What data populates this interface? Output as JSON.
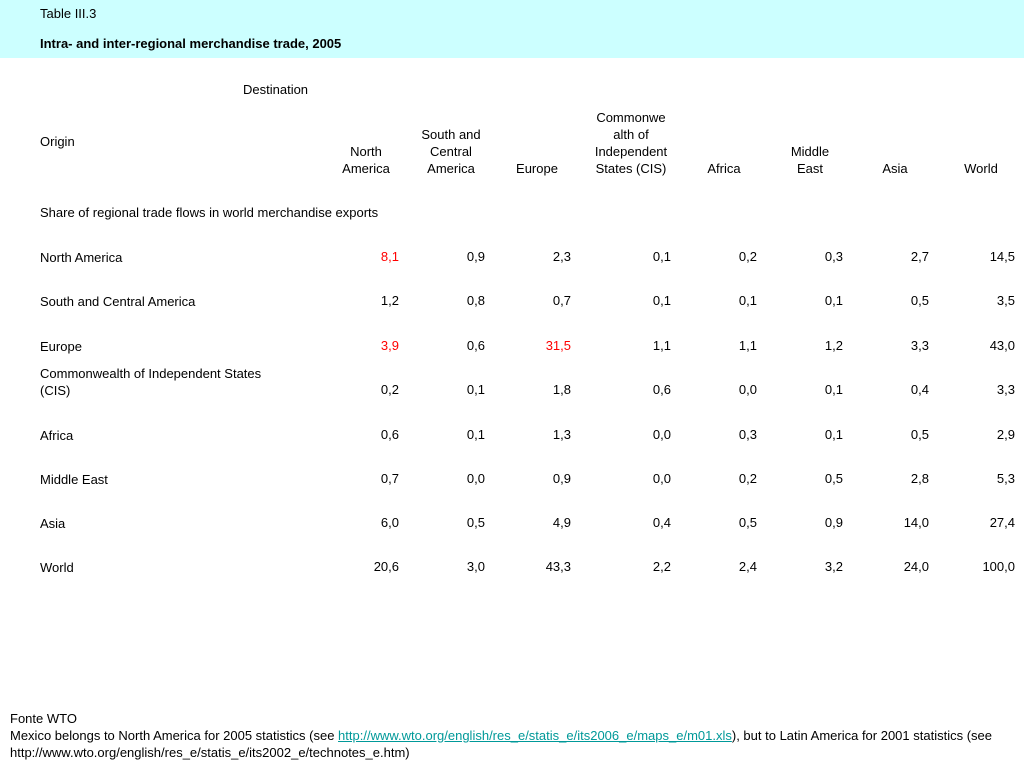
{
  "header": {
    "table_number": "Table III.3",
    "title": "Intra- and inter-regional merchandise trade, 2005"
  },
  "destination_label": "Destination",
  "origin_label": "Origin",
  "section_label": "Share of regional trade flows in world merchandise exports",
  "highlight_color": "#ff0000",
  "chart_data": {
    "type": "table",
    "title": "Intra- and inter-regional merchandise trade, 2005",
    "columns": [
      "North America",
      "South and Central America",
      "Europe",
      "Commonwealth of Independent States (CIS)",
      "Africa",
      "Middle East",
      "Asia",
      "World"
    ],
    "column_display": [
      "North\nAmerica",
      "South and\nCentral\nAmerica",
      "Europe",
      "Commonwe\nalth of\nIndependent\nStates (CIS)",
      "Africa",
      "Middle\nEast",
      "Asia",
      "World"
    ],
    "rows": [
      {
        "label": "North America",
        "values": [
          "8,1",
          "0,9",
          "2,3",
          "0,1",
          "0,2",
          "0,3",
          "2,7",
          "14,5"
        ],
        "highlight": [
          0
        ]
      },
      {
        "label": "South and Central America",
        "values": [
          "1,2",
          "0,8",
          "0,7",
          "0,1",
          "0,1",
          "0,1",
          "0,5",
          "3,5"
        ],
        "highlight": []
      },
      {
        "label": "Europe",
        "values": [
          "3,9",
          "0,6",
          "31,5",
          "1,1",
          "1,1",
          "1,2",
          "3,3",
          "43,0"
        ],
        "highlight": [
          0,
          2
        ]
      },
      {
        "label": "Commonwealth of Independent States\n(CIS)",
        "values": [
          "0,2",
          "0,1",
          "1,8",
          "0,6",
          "0,0",
          "0,1",
          "0,4",
          "3,3"
        ],
        "highlight": []
      },
      {
        "label": "Africa",
        "values": [
          "0,6",
          "0,1",
          "1,3",
          "0,0",
          "0,3",
          "0,1",
          "0,5",
          "2,9"
        ],
        "highlight": []
      },
      {
        "label": "Middle East",
        "values": [
          "0,7",
          "0,0",
          "0,9",
          "0,0",
          "0,2",
          "0,5",
          "2,8",
          "5,3"
        ],
        "highlight": []
      },
      {
        "label": "Asia",
        "values": [
          "6,0",
          "0,5",
          "4,9",
          "0,4",
          "0,5",
          "0,9",
          "14,0",
          "27,4"
        ],
        "highlight": []
      },
      {
        "label": "World",
        "values": [
          "20,6",
          "3,0",
          "43,3",
          "2,2",
          "2,4",
          "3,2",
          "24,0",
          "100,0"
        ],
        "highlight": []
      }
    ]
  },
  "footer": {
    "source": "Fonte WTO",
    "note_prefix": "Mexico belongs to North America for 2005 statistics (see ",
    "note_link": "http://www.wto.org/english/res_e/statis_e/its2006_e/maps_e/m01.xls",
    "note_suffix": "), but to Latin America for 2001 statistics (see http://www.wto.org/english/res_e/statis_e/its2002_e/technotes_e.htm)"
  }
}
